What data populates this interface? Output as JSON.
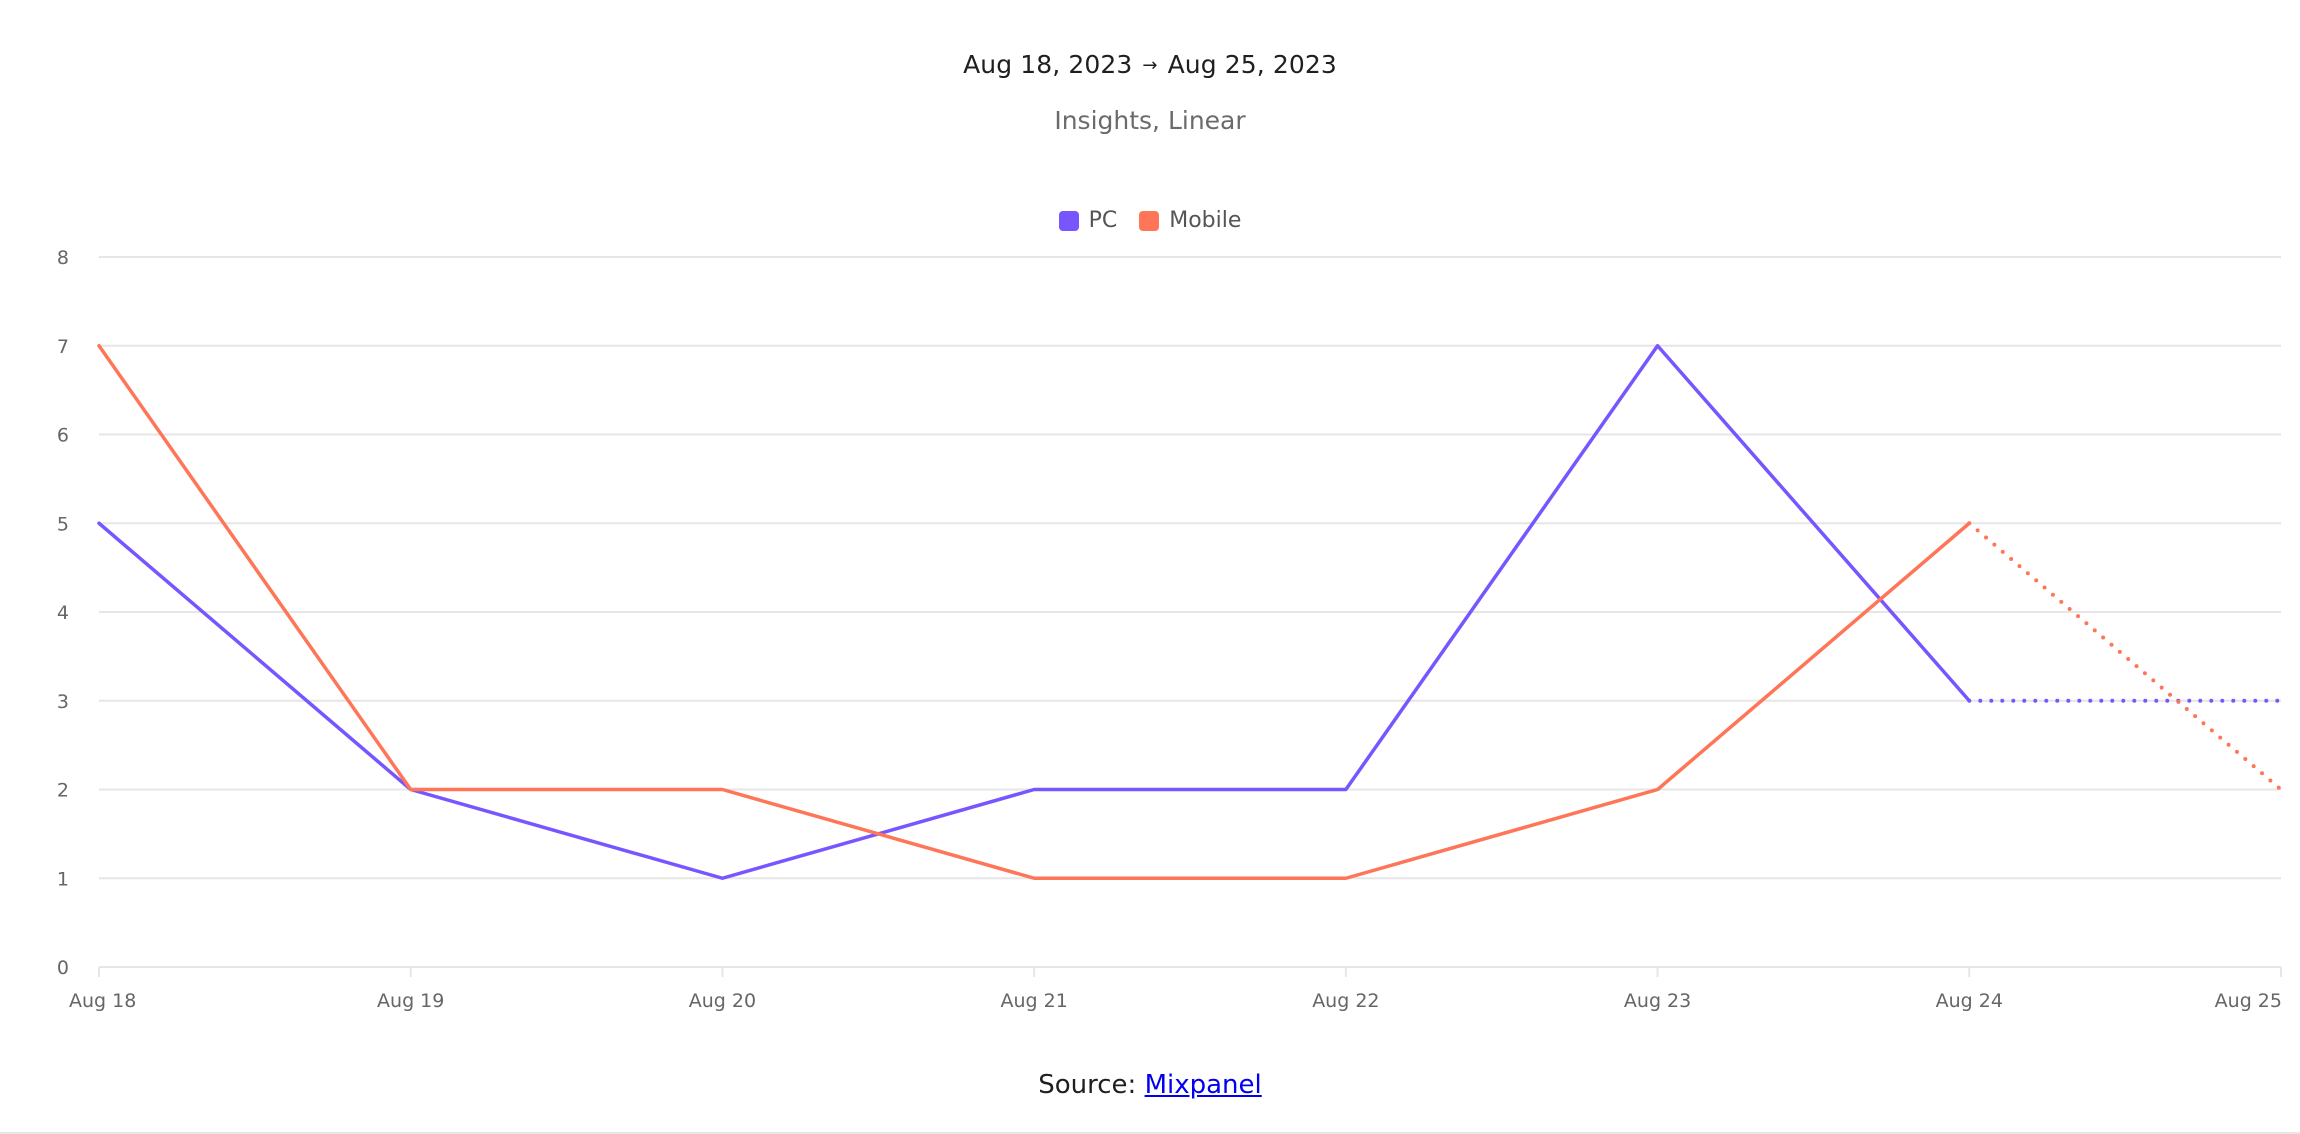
{
  "header": {
    "start_date": "Aug 18, 2023",
    "arrow": "→",
    "end_date": "Aug 25, 2023",
    "subtitle": "Insights, Linear"
  },
  "footer": {
    "source_label": "Source:",
    "source_link_text": "Mixpanel"
  },
  "colors": {
    "pc": "#7856ff",
    "mobile": "#ff7557",
    "grid": "#e6e6e6",
    "tick_text": "#666666"
  },
  "chart_data": {
    "type": "line",
    "title": "Aug 18, 2023 → Aug 25, 2023",
    "subtitle": "Insights, Linear",
    "categories": [
      "Aug 18",
      "Aug 19",
      "Aug 20",
      "Aug 21",
      "Aug 22",
      "Aug 23",
      "Aug 24",
      "Aug 25"
    ],
    "ylim": [
      0,
      8
    ],
    "yticks": [
      0,
      1,
      2,
      3,
      4,
      5,
      6,
      7,
      8
    ],
    "grid": true,
    "legend_position": "top-center",
    "series": [
      {
        "name": "PC",
        "values": [
          5,
          2,
          1,
          2,
          2,
          7,
          3,
          3
        ],
        "dotted_from_index": 6
      },
      {
        "name": "Mobile",
        "values": [
          7,
          2,
          2,
          1,
          1,
          2,
          5,
          2
        ],
        "dotted_from_index": 6
      }
    ]
  }
}
